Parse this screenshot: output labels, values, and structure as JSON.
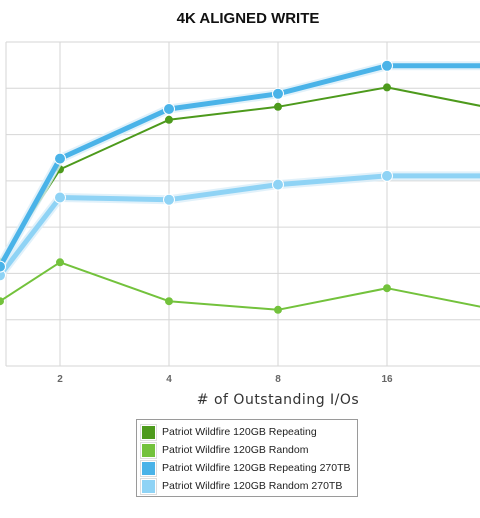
{
  "chart_data": {
    "type": "line",
    "title": "4K ALIGNED WRITE",
    "xlabel": "# of Outstanding I/Os",
    "ylabel": "",
    "x": [
      "1",
      "2",
      "4",
      "8",
      "16",
      "32"
    ],
    "x_tick_labels": [
      "2",
      "4",
      "8",
      "16"
    ],
    "ylim": [
      0,
      7.5
    ],
    "grid": true,
    "legend_placement": "bottom",
    "series": [
      {
        "name": "Patriot Wildfire 120GB Repeating",
        "color": "#4d9a1c",
        "values": [
          2.4,
          4.55,
          5.7,
          6.0,
          6.45,
          5.95
        ]
      },
      {
        "name": "Patriot Wildfire 120GB Random",
        "color": "#73c23c",
        "values": [
          1.5,
          2.4,
          1.5,
          1.3,
          1.8,
          1.3
        ]
      },
      {
        "name": "Patriot Wildfire 120GB Repeating 270TB",
        "color": "#4ab3e8",
        "values": [
          2.3,
          4.8,
          5.95,
          6.3,
          6.95,
          6.95
        ]
      },
      {
        "name": "Patriot Wildfire 120GB Random 270TB",
        "color": "#8fd3f5",
        "values": [
          2.1,
          3.9,
          3.85,
          4.2,
          4.4,
          4.4
        ]
      }
    ]
  }
}
